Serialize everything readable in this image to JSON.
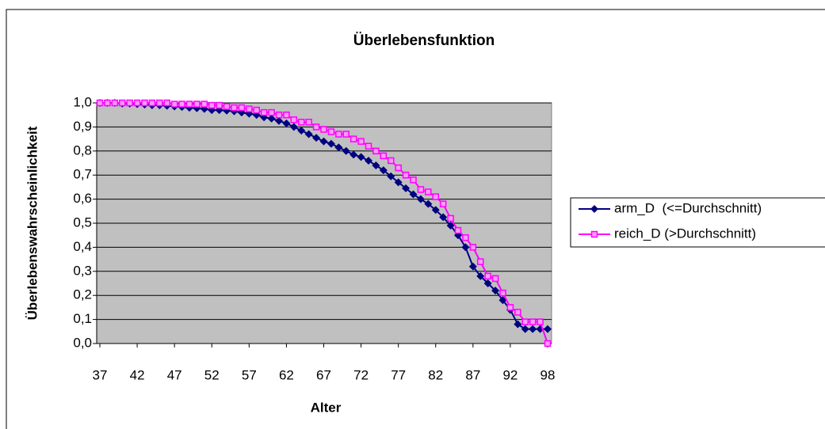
{
  "chart_data": {
    "type": "line",
    "title": "Überlebensfunktion",
    "x_label": "Alter",
    "y_label": "Überlebenswahrscheinlichkeit",
    "categories": [
      "37",
      null,
      null,
      null,
      null,
      "42",
      null,
      null,
      null,
      null,
      "47",
      null,
      null,
      null,
      null,
      "52",
      null,
      null,
      null,
      null,
      "57",
      null,
      null,
      null,
      null,
      "62",
      null,
      null,
      null,
      null,
      "67",
      null,
      null,
      null,
      null,
      "72",
      null,
      null,
      null,
      null,
      "77",
      null,
      null,
      null,
      null,
      "82",
      null,
      null,
      null,
      null,
      "87",
      null,
      null,
      null,
      null,
      "92",
      null,
      null,
      null,
      null,
      "98"
    ],
    "series": [
      {
        "name": "arm_D  (<=Durchschnitt)",
        "color": "#000080",
        "marker": "diamond",
        "values": [
          1.0,
          1.0,
          1.0,
          0.997,
          0.997,
          0.995,
          0.993,
          0.99,
          0.99,
          0.988,
          0.985,
          0.983,
          0.98,
          0.978,
          0.975,
          0.97,
          0.97,
          0.968,
          0.965,
          0.96,
          0.955,
          0.95,
          0.94,
          0.935,
          0.925,
          0.915,
          0.9,
          0.885,
          0.87,
          0.855,
          0.84,
          0.83,
          0.815,
          0.8,
          0.785,
          0.775,
          0.76,
          0.74,
          0.72,
          0.695,
          0.67,
          0.645,
          0.62,
          0.6,
          0.58,
          0.555,
          0.525,
          0.49,
          0.45,
          0.4,
          0.32,
          0.28,
          0.25,
          0.22,
          0.18,
          0.14,
          0.08,
          0.06,
          0.06,
          0.06,
          0.06
        ]
      },
      {
        "name": "reich_D (>Durchschnitt)",
        "color": "#ff00ff",
        "marker": "square",
        "values": [
          1.0,
          1.0,
          1.0,
          1.0,
          1.0,
          1.0,
          1.0,
          1.0,
          1.0,
          1.0,
          0.995,
          0.995,
          0.995,
          0.995,
          0.995,
          0.99,
          0.99,
          0.985,
          0.98,
          0.98,
          0.975,
          0.97,
          0.96,
          0.96,
          0.95,
          0.95,
          0.93,
          0.92,
          0.92,
          0.9,
          0.89,
          0.88,
          0.87,
          0.87,
          0.85,
          0.84,
          0.82,
          0.8,
          0.78,
          0.76,
          0.73,
          0.7,
          0.68,
          0.64,
          0.63,
          0.61,
          0.58,
          0.52,
          0.47,
          0.44,
          0.4,
          0.34,
          0.28,
          0.27,
          0.21,
          0.15,
          0.13,
          0.09,
          0.09,
          0.09,
          0.0
        ]
      }
    ],
    "ylim": [
      0,
      1
    ],
    "yticks": [
      {
        "value": 0,
        "label": "0,0"
      },
      {
        "value": 0.1,
        "label": "0,1"
      },
      {
        "value": 0.2,
        "label": "0,2"
      },
      {
        "value": 0.3,
        "label": "0,3"
      },
      {
        "value": 0.4,
        "label": "0,4"
      },
      {
        "value": 0.5,
        "label": "0,5"
      },
      {
        "value": 0.6,
        "label": "0,6"
      },
      {
        "value": 0.7,
        "label": "0,7"
      },
      {
        "value": 0.8,
        "label": "0,8"
      },
      {
        "value": 0.9,
        "label": "0,9"
      },
      {
        "value": 1,
        "label": "1,0"
      }
    ],
    "grid": true,
    "legend": "right"
  }
}
